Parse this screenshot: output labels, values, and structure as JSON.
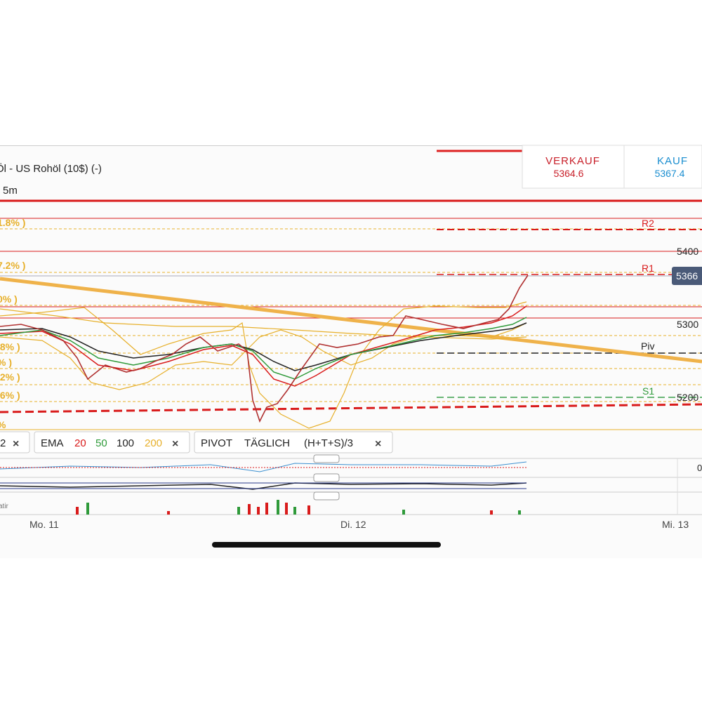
{
  "header": {
    "title": "Öl - US Rohöl (10$) (-)",
    "timeframe": "5m"
  },
  "quote": {
    "sell_label": "VERKAUF",
    "sell_price": "5364.6",
    "buy_label": "KAUF",
    "buy_price": "5367.4"
  },
  "fib_labels": [
    "1.8% )",
    "7.2% )",
    "0% )",
    ".8% )",
    "% )",
    ".2% )",
    ".6% )",
    "%"
  ],
  "pivot_labels": [
    "R2",
    "R1",
    "Piv",
    "S1"
  ],
  "price_axis": [
    "5400",
    "5300",
    "5200"
  ],
  "current_price": "5366",
  "indicators": {
    "first": "2",
    "ema_label": "EMA",
    "ema_periods": [
      "20",
      "50",
      "100",
      "200"
    ],
    "pivot_label": "PIVOT",
    "pivot_period": "TÄGLICH",
    "pivot_formula": "(H+T+S)/3"
  },
  "subpanel_label": "0",
  "volume_label": "atir",
  "time_axis": [
    "Mo. 11",
    "Di. 12",
    "Mi. 13"
  ]
}
